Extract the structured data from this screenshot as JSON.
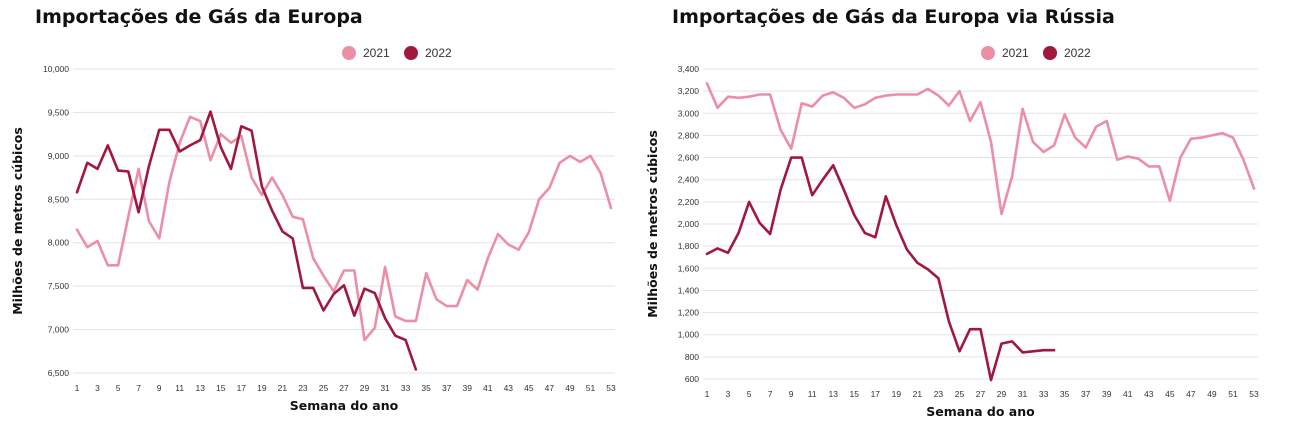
{
  "colors": {
    "y2021": "#ec8fa6",
    "y2022": "#a1183f"
  },
  "chart_data": [
    {
      "type": "line",
      "title": "Importações  de Gás da Europa",
      "xlabel": "Semana do ano",
      "ylabel": "Milhões de metros cúbicos",
      "ylim": [
        6500,
        10000
      ],
      "xlim": [
        1,
        53
      ],
      "yticks": [
        "6,500",
        "7,000",
        "7,500",
        "8,000",
        "8,500",
        "9,000",
        "9,500",
        "10,000"
      ],
      "yticks_values": [
        6500,
        7000,
        7500,
        8000,
        8500,
        9000,
        9500,
        10000
      ],
      "xticks": [
        "1",
        "3",
        "5",
        "7",
        "9",
        "11",
        "13",
        "15",
        "17",
        "19",
        "21",
        "23",
        "25",
        "27",
        "29",
        "31",
        "33",
        "35",
        "37",
        "39",
        "41",
        "43",
        "45",
        "47",
        "49",
        "51",
        "53"
      ],
      "grid": true,
      "legend_position": "top",
      "series": [
        {
          "name": "2021",
          "x": [
            1,
            2,
            3,
            4,
            5,
            6,
            7,
            8,
            9,
            10,
            11,
            12,
            13,
            14,
            15,
            16,
            17,
            18,
            19,
            20,
            21,
            22,
            23,
            24,
            25,
            26,
            27,
            28,
            29,
            30,
            31,
            32,
            33,
            34,
            35,
            36,
            37,
            38,
            39,
            40,
            41,
            42,
            43,
            44,
            45,
            46,
            47,
            48,
            49,
            50,
            51,
            52,
            53
          ],
          "values": [
            8150,
            7950,
            8020,
            7740,
            7740,
            8300,
            8850,
            8250,
            8050,
            8700,
            9150,
            9450,
            9400,
            8950,
            9250,
            9150,
            9230,
            8750,
            8550,
            8750,
            8550,
            8300,
            8270,
            7820,
            7620,
            7440,
            7680,
            7680,
            6880,
            7020,
            7720,
            7150,
            7100,
            7100,
            7650,
            7350,
            7270,
            7270,
            7570,
            7460,
            7820,
            8100,
            7980,
            7920,
            8120,
            8500,
            8630,
            8920,
            9000,
            8930,
            9000,
            8800,
            8400
          ]
        },
        {
          "name": "2022",
          "x": [
            1,
            2,
            3,
            4,
            5,
            6,
            7,
            8,
            9,
            10,
            11,
            12,
            13,
            14,
            15,
            16,
            17,
            18,
            19,
            20,
            21,
            22,
            23,
            24,
            25,
            26,
            27,
            28,
            29,
            30,
            31,
            32,
            33,
            34
          ],
          "values": [
            8580,
            8920,
            8850,
            9120,
            8830,
            8820,
            8350,
            8880,
            9300,
            9300,
            9050,
            9120,
            9180,
            9510,
            9100,
            8850,
            9340,
            9290,
            8650,
            8370,
            8130,
            8050,
            7480,
            7480,
            7220,
            7410,
            7510,
            7160,
            7470,
            7420,
            7130,
            6930,
            6880,
            6540
          ]
        }
      ]
    },
    {
      "type": "line",
      "title": "Importações  de Gás da Europa via Rússia",
      "xlabel": "Semana do ano",
      "ylabel": "Milhões de metros cúbicos",
      "ylim": [
        600,
        3400
      ],
      "xlim": [
        1,
        53
      ],
      "yticks": [
        "600",
        "800",
        "1,000",
        "1,200",
        "1,400",
        "1,600",
        "1,800",
        "2,000",
        "2,200",
        "2,400",
        "2,600",
        "2,800",
        "3,000",
        "3,200",
        "3,400"
      ],
      "yticks_values": [
        600,
        800,
        1000,
        1200,
        1400,
        1600,
        1800,
        2000,
        2200,
        2400,
        2600,
        2800,
        3000,
        3200,
        3400
      ],
      "xticks": [
        "1",
        "3",
        "5",
        "7",
        "9",
        "11",
        "13",
        "15",
        "17",
        "19",
        "21",
        "23",
        "25",
        "27",
        "29",
        "31",
        "33",
        "35",
        "37",
        "39",
        "41",
        "43",
        "45",
        "47",
        "49",
        "51",
        "53"
      ],
      "grid": true,
      "legend_position": "top",
      "series": [
        {
          "name": "2021",
          "x": [
            1,
            2,
            3,
            4,
            5,
            6,
            7,
            8,
            9,
            10,
            11,
            12,
            13,
            14,
            15,
            16,
            17,
            18,
            19,
            20,
            21,
            22,
            23,
            24,
            25,
            26,
            27,
            28,
            29,
            30,
            31,
            32,
            33,
            34,
            35,
            36,
            37,
            38,
            39,
            40,
            41,
            42,
            43,
            44,
            45,
            46,
            47,
            48,
            49,
            50,
            51,
            52,
            53
          ],
          "values": [
            3270,
            3050,
            3150,
            3140,
            3150,
            3170,
            3170,
            2850,
            2680,
            3090,
            3060,
            3160,
            3190,
            3140,
            3050,
            3080,
            3140,
            3160,
            3170,
            3170,
            3170,
            3220,
            3160,
            3070,
            3200,
            2930,
            3100,
            2740,
            2090,
            2430,
            3040,
            2740,
            2650,
            2710,
            2990,
            2780,
            2690,
            2880,
            2930,
            2580,
            2610,
            2590,
            2520,
            2520,
            2210,
            2600,
            2770,
            2780,
            2800,
            2820,
            2780,
            2580,
            2320
          ]
        },
        {
          "name": "2022",
          "x": [
            1,
            2,
            3,
            4,
            5,
            6,
            7,
            8,
            9,
            10,
            11,
            12,
            13,
            14,
            15,
            16,
            17,
            18,
            19,
            20,
            21,
            22,
            23,
            24,
            25,
            26,
            27,
            28,
            29,
            30,
            31,
            32,
            33,
            34
          ],
          "values": [
            1730,
            1780,
            1740,
            1920,
            2200,
            2010,
            1910,
            2310,
            2600,
            2600,
            2260,
            2400,
            2530,
            2310,
            2080,
            1920,
            1880,
            2250,
            1990,
            1770,
            1650,
            1590,
            1510,
            1120,
            850,
            1050,
            1050,
            590,
            920,
            940,
            840,
            850,
            860,
            860
          ]
        }
      ]
    }
  ]
}
